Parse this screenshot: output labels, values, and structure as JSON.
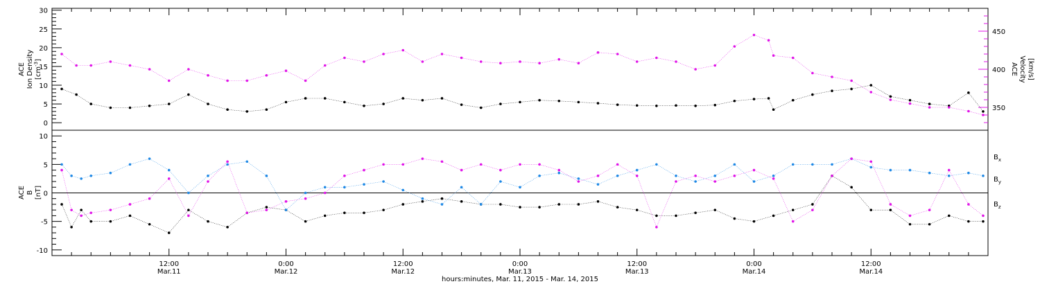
{
  "colors": {
    "black": "#000000",
    "magenta": "#e014e8",
    "blue": "#1e88e5"
  },
  "chart_data": [
    {
      "type": "scatter",
      "panel": "top",
      "ylabel_left": [
        "ACE",
        "Ion Density",
        "[cm^-3]"
      ],
      "ylabel_right": [
        "ACE",
        "Velocity",
        "[km/s]"
      ],
      "ylim_left": [
        -2,
        30.5
      ],
      "yticks_left": [
        0,
        5,
        10,
        15,
        20,
        25,
        30
      ],
      "ylim_right": [
        320,
        480
      ],
      "yticks_right": [
        350,
        400,
        450
      ],
      "xlim_hours": [
        -12,
        84
      ],
      "series": [
        {
          "axis": "left",
          "color": "black",
          "t": [
            -11,
            -9.5,
            -8,
            -6,
            -4,
            -2,
            0,
            2,
            4,
            6,
            8,
            10,
            12,
            14,
            16,
            18,
            20,
            22,
            24,
            26,
            28,
            30,
            32,
            34,
            36,
            38,
            40,
            42,
            44,
            46,
            48,
            50,
            52,
            54,
            56,
            58,
            60,
            61.5,
            62,
            64,
            66,
            68,
            70,
            72,
            74,
            76,
            78,
            80,
            82,
            83.5
          ],
          "values": [
            9,
            7.5,
            5,
            4,
            4,
            4.5,
            5,
            7.5,
            5,
            3.5,
            3,
            3.5,
            5.5,
            6.5,
            6.5,
            5.5,
            4.5,
            5,
            6.5,
            6,
            6.5,
            4.8,
            4,
            5,
            5.5,
            6,
            5.8,
            5.5,
            5.2,
            4.8,
            4.6,
            4.5,
            4.6,
            4.5,
            4.7,
            5.8,
            6.3,
            6.5,
            3.5,
            6,
            7.5,
            8.5,
            9,
            10,
            7,
            6,
            5,
            4.5,
            8,
            3
          ]
        },
        {
          "axis": "right",
          "color": "magenta",
          "t": [
            -11,
            -9.5,
            -8,
            -6,
            -4,
            -2,
            0,
            2,
            4,
            6,
            8,
            10,
            12,
            14,
            16,
            18,
            20,
            22,
            24,
            26,
            28,
            30,
            32,
            34,
            36,
            38,
            40,
            42,
            44,
            46,
            48,
            50,
            52,
            54,
            56,
            58,
            60,
            61.5,
            62,
            64,
            66,
            68,
            70,
            72,
            74,
            76,
            78,
            80,
            82,
            83.5
          ],
          "values": [
            420,
            405,
            405,
            410,
            405,
            400,
            385,
            400,
            392,
            385,
            385,
            392,
            398,
            385,
            405,
            415,
            410,
            420,
            425,
            410,
            420,
            415,
            410,
            408,
            410,
            408,
            413,
            408,
            422,
            420,
            410,
            415,
            410,
            400,
            405,
            430,
            445,
            438,
            418,
            415,
            395,
            390,
            385,
            370,
            360,
            355,
            350,
            350,
            345,
            340
          ]
        }
      ]
    },
    {
      "type": "scatter",
      "panel": "bottom",
      "ylabel_left": [
        "ACE",
        "B",
        "[nT]"
      ],
      "ylim": [
        -11,
        11
      ],
      "yticks": [
        -10,
        -5,
        0,
        5,
        10
      ],
      "legend": [
        "Bx",
        "By",
        "Bz"
      ],
      "xlim_hours": [
        -12,
        84
      ],
      "series": [
        {
          "name": "Bx",
          "color": "black",
          "t": [
            -11,
            -10,
            -9,
            -8,
            -6,
            -4,
            -2,
            0,
            2,
            4,
            6,
            8,
            10,
            12,
            14,
            16,
            18,
            20,
            22,
            24,
            26,
            28,
            30,
            32,
            34,
            36,
            38,
            40,
            42,
            44,
            46,
            48,
            50,
            52,
            54,
            56,
            58,
            60,
            62,
            64,
            66,
            68,
            70,
            72,
            74,
            76,
            78,
            80,
            82,
            83.5
          ],
          "values": [
            -2,
            -6,
            -3,
            -5,
            -5,
            -4,
            -5.5,
            -7,
            -3,
            -5,
            -6,
            -3.5,
            -2.5,
            -3,
            -5,
            -4,
            -3.5,
            -3.5,
            -3,
            -2,
            -1.5,
            -1,
            -1.5,
            -2,
            -2,
            -2.5,
            -2.5,
            -2,
            -2,
            -1.5,
            -2.5,
            -3,
            -4,
            -4,
            -3.5,
            -3,
            -4.5,
            -5,
            -4,
            -3,
            -2,
            3,
            1,
            -3,
            -3,
            -5.5,
            -5.5,
            -4,
            -5,
            -5
          ]
        },
        {
          "name": "By",
          "color": "blue",
          "t": [
            -11,
            -10,
            -9,
            -8,
            -6,
            -4,
            -2,
            0,
            2,
            4,
            6,
            8,
            10,
            12,
            14,
            16,
            18,
            20,
            22,
            24,
            26,
            28,
            30,
            32,
            34,
            36,
            38,
            40,
            42,
            44,
            46,
            48,
            50,
            52,
            54,
            56,
            58,
            60,
            62,
            64,
            66,
            68,
            70,
            72,
            74,
            76,
            78,
            80,
            82,
            83.5
          ],
          "values": [
            5,
            3,
            2.5,
            3,
            3.5,
            5,
            6,
            4,
            0,
            3,
            5,
            5.5,
            3,
            -3,
            0,
            1,
            1,
            1.5,
            2,
            0.5,
            -1,
            -2,
            1,
            -2,
            2,
            1,
            3,
            3.5,
            2.5,
            1.5,
            3,
            4,
            5,
            3,
            2,
            3,
            5,
            2,
            3,
            5,
            5,
            5,
            6,
            4.5,
            4,
            4,
            3.5,
            3,
            3.5,
            3
          ]
        },
        {
          "name": "Bz",
          "color": "magenta",
          "t": [
            -11,
            -10,
            -9,
            -8,
            -6,
            -4,
            -2,
            0,
            2,
            4,
            6,
            8,
            10,
            12,
            14,
            16,
            18,
            20,
            22,
            24,
            26,
            28,
            30,
            32,
            34,
            36,
            38,
            40,
            42,
            44,
            46,
            48,
            50,
            52,
            54,
            56,
            58,
            60,
            62,
            64,
            66,
            68,
            70,
            72,
            74,
            76,
            78,
            80,
            82,
            83.5
          ],
          "values": [
            4,
            -3,
            -4,
            -3.5,
            -3,
            -2,
            -1,
            2.5,
            -4,
            2,
            5.5,
            -3.5,
            -3,
            -1.5,
            -1,
            0,
            3,
            4,
            5,
            5,
            6,
            5.5,
            4,
            5,
            4,
            5,
            5,
            4,
            2,
            3,
            5,
            3,
            -6,
            2,
            3,
            2,
            3,
            4,
            2.5,
            -5,
            -3,
            3,
            6,
            5.5,
            -2,
            -4,
            -3,
            4,
            -2,
            -4
          ]
        }
      ]
    }
  ],
  "x_ticks": [
    {
      "t": 0,
      "time": "12:00",
      "date": "Mar.11"
    },
    {
      "t": 12,
      "time": "0:00",
      "date": "Mar.12"
    },
    {
      "t": 24,
      "time": "12:00",
      "date": "Mar.12"
    },
    {
      "t": 36,
      "time": "0:00",
      "date": "Mar.13"
    },
    {
      "t": 48,
      "time": "12:00",
      "date": "Mar.13"
    },
    {
      "t": 60,
      "time": "0:00",
      "date": "Mar.14"
    },
    {
      "t": 72,
      "time": "12:00",
      "date": "Mar.14"
    }
  ],
  "xlabel": "hours:minutes, Mar. 11, 2015 - Mar. 14, 2015"
}
